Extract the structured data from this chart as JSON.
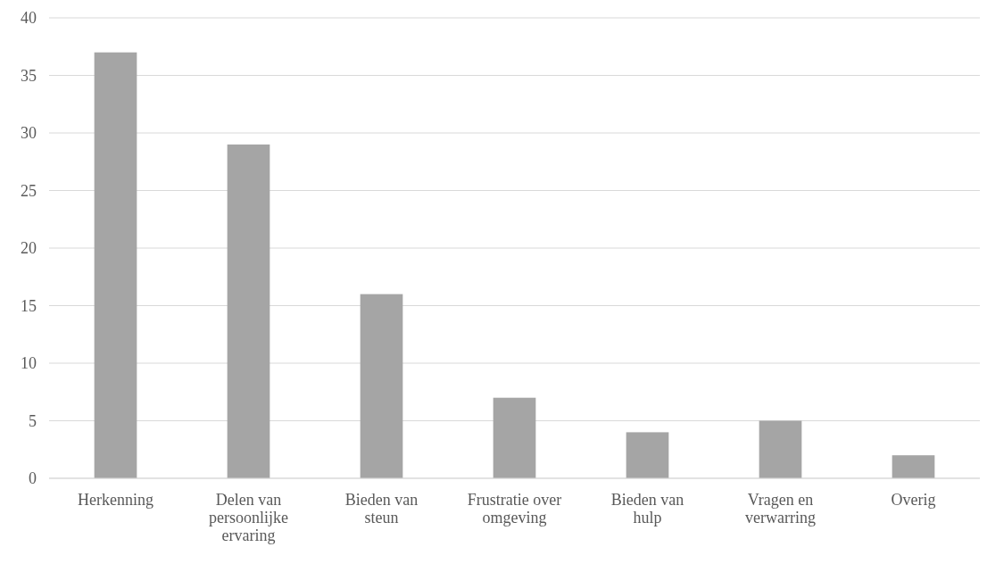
{
  "chart_data": {
    "type": "bar",
    "categories": [
      "Herkenning",
      "Delen van persoonlijke ervaring",
      "Bieden van steun",
      "Frustratie over omgeving",
      "Bieden van hulp",
      "Vragen en verwarring",
      "Overig"
    ],
    "values": [
      37,
      29,
      16,
      7,
      4,
      5,
      2
    ],
    "color": "#a5a5a5",
    "ylim": [
      0,
      40
    ],
    "yticks": [
      0,
      5,
      10,
      15,
      20,
      25,
      30,
      35,
      40
    ],
    "grid": "y"
  }
}
